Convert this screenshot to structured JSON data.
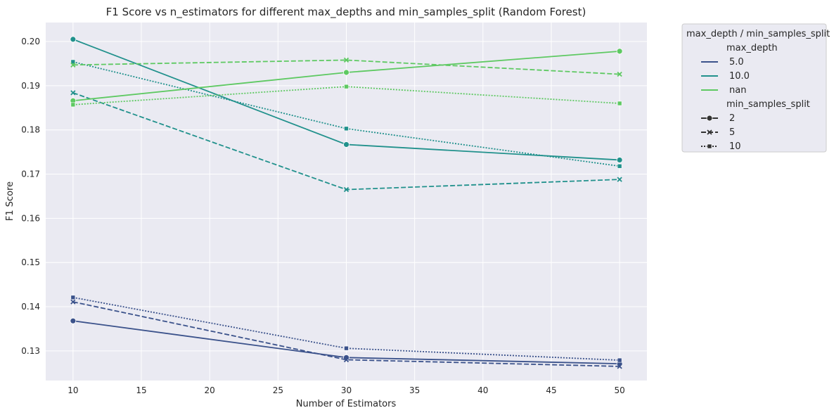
{
  "chart_data": {
    "type": "line",
    "title": "F1 Score vs n_estimators for different max_depths and min_samples_split (Random Forest)",
    "xlabel": "Number of Estimators",
    "ylabel": "F1 Score",
    "x": [
      10,
      30,
      50
    ],
    "xlim": [
      8,
      52
    ],
    "ylim": [
      0.1233,
      0.2043
    ],
    "x_ticks": [
      10,
      15,
      20,
      25,
      30,
      35,
      40,
      45,
      50
    ],
    "y_ticks": [
      0.13,
      0.14,
      0.15,
      0.16,
      0.17,
      0.18,
      0.19,
      0.2
    ],
    "y_tick_labels": [
      "0.13",
      "0.14",
      "0.15",
      "0.16",
      "0.17",
      "0.18",
      "0.19",
      "0.20"
    ],
    "grid": true,
    "legend_position": "outside-top-right",
    "legend": {
      "title": "max_depth / min_samples_split",
      "hue_title": "max_depth",
      "hue_entries": [
        {
          "label": "5.0",
          "color": "#3b528b"
        },
        {
          "label": "10.0",
          "color": "#21918c"
        },
        {
          "label": "nan",
          "color": "#5ec962"
        }
      ],
      "style_title": "min_samples_split",
      "style_entries": [
        {
          "label": "2",
          "dash": "solid",
          "marker": "circle"
        },
        {
          "label": "5",
          "dash": "dashed",
          "marker": "x"
        },
        {
          "label": "10",
          "dash": "dotted",
          "marker": "square"
        }
      ]
    },
    "series": [
      {
        "max_depth": "5.0",
        "min_samples_split": "2",
        "values": [
          0.1368,
          0.1285,
          0.1271
        ]
      },
      {
        "max_depth": "5.0",
        "min_samples_split": "5",
        "values": [
          0.1411,
          0.128,
          0.1265
        ]
      },
      {
        "max_depth": "5.0",
        "min_samples_split": "10",
        "values": [
          0.1421,
          0.1306,
          0.1279
        ]
      },
      {
        "max_depth": "10.0",
        "min_samples_split": "2",
        "values": [
          0.2005,
          0.1767,
          0.1732
        ]
      },
      {
        "max_depth": "10.0",
        "min_samples_split": "5",
        "values": [
          0.1884,
          0.1665,
          0.1688
        ]
      },
      {
        "max_depth": "10.0",
        "min_samples_split": "10",
        "values": [
          0.1954,
          0.1803,
          0.1718
        ]
      },
      {
        "max_depth": "nan",
        "min_samples_split": "2",
        "values": [
          0.1866,
          0.193,
          0.1978
        ]
      },
      {
        "max_depth": "nan",
        "min_samples_split": "5",
        "values": [
          0.1947,
          0.1958,
          0.1926
        ]
      },
      {
        "max_depth": "nan",
        "min_samples_split": "10",
        "values": [
          0.1857,
          0.1898,
          0.186
        ]
      }
    ]
  }
}
